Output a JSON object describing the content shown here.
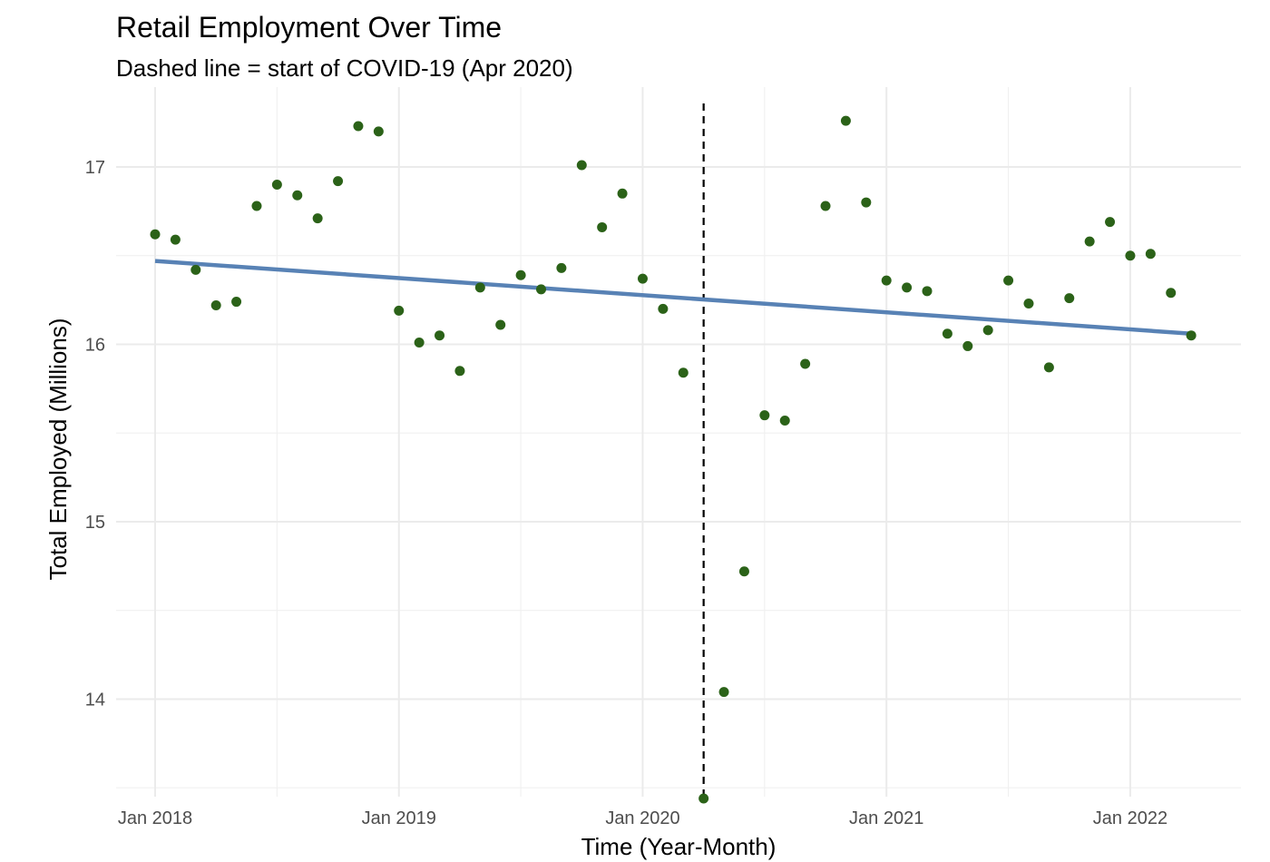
{
  "chart_data": {
    "type": "scatter",
    "title": "Retail Employment Over Time",
    "subtitle": "Dashed line = start of COVID-19 (Apr 2020)",
    "xlabel": "Time (Year-Month)",
    "ylabel": "Total Employed (Millions)",
    "x_ticks": [
      "2018-01",
      "2019-01",
      "2020-01",
      "2021-01",
      "2022-01"
    ],
    "x_tick_labels": [
      "Jan 2018",
      "Jan 2019",
      "Jan 2020",
      "Jan 2021",
      "Jan 2022"
    ],
    "xlim": [
      "2017-11",
      "2022-06"
    ],
    "y_ticks": [
      14,
      15,
      16,
      17
    ],
    "y_tick_labels": [
      "14",
      "15",
      "16",
      "17"
    ],
    "ylim": [
      13.45,
      17.45
    ],
    "grid": true,
    "vline": {
      "x": "2020-04",
      "style": "dashed",
      "color": "#000000"
    },
    "trend": {
      "x": [
        "2018-01",
        "2022-04"
      ],
      "y": [
        16.47,
        16.06
      ],
      "color": "#5882B5"
    },
    "point_color": "#2B6218",
    "series": [
      {
        "x": [
          "2018-01",
          "2018-02",
          "2018-03",
          "2018-04",
          "2018-05",
          "2018-06",
          "2018-07",
          "2018-08",
          "2018-09",
          "2018-10",
          "2018-11",
          "2018-12",
          "2019-01",
          "2019-02",
          "2019-03",
          "2019-04",
          "2019-05",
          "2019-06",
          "2019-07",
          "2019-08",
          "2019-09",
          "2019-10",
          "2019-11",
          "2019-12",
          "2020-01",
          "2020-02",
          "2020-03",
          "2020-04",
          "2020-05",
          "2020-06",
          "2020-07",
          "2020-08",
          "2020-09",
          "2020-10",
          "2020-11",
          "2020-12",
          "2021-01",
          "2021-02",
          "2021-03",
          "2021-04",
          "2021-05",
          "2021-06",
          "2021-07",
          "2021-08",
          "2021-09",
          "2021-10",
          "2021-11",
          "2021-12",
          "2022-01",
          "2022-02",
          "2022-03",
          "2022-04"
        ],
        "y": [
          16.62,
          16.59,
          16.42,
          16.22,
          16.24,
          16.78,
          16.9,
          16.84,
          16.71,
          16.92,
          17.23,
          17.2,
          16.19,
          16.01,
          16.05,
          15.85,
          16.32,
          16.11,
          16.39,
          16.31,
          16.43,
          17.01,
          16.66,
          16.85,
          16.37,
          16.2,
          15.84,
          13.44,
          14.04,
          14.72,
          15.6,
          15.57,
          15.89,
          16.78,
          17.26,
          16.8,
          16.36,
          16.32,
          16.3,
          16.06,
          15.99,
          16.08,
          16.36,
          16.23,
          15.87,
          16.26,
          16.58,
          16.69,
          16.5,
          16.51,
          16.29,
          16.05
        ]
      }
    ]
  }
}
